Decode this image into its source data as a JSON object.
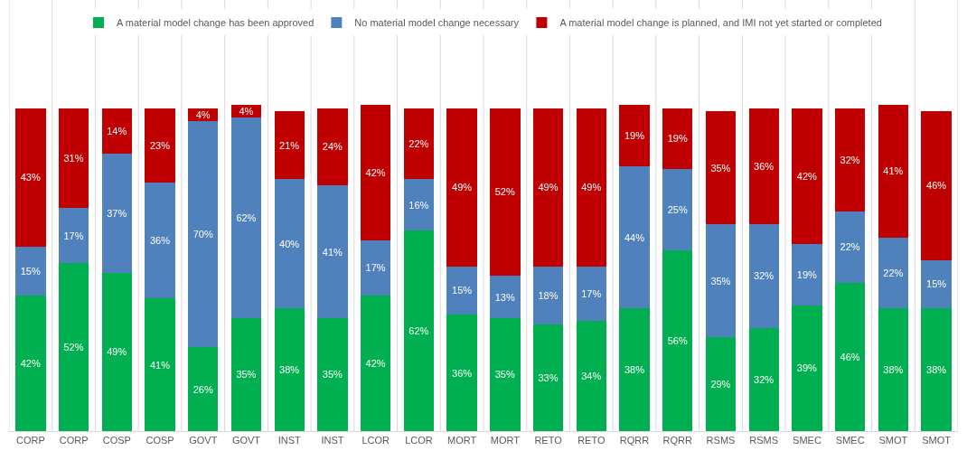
{
  "chart_data": {
    "type": "bar",
    "stacked": true,
    "grid": "x",
    "legend": "top",
    "categories": [
      "CORP",
      "CORP",
      "COSP",
      "COSP",
      "GOVT",
      "GOVT",
      "INST",
      "INST",
      "LCOR",
      "LCOR",
      "MORT",
      "MORT",
      "RETO",
      "RETO",
      "RQRR",
      "RQRR",
      "RSMS",
      "RSMS",
      "SMEC",
      "SMEC",
      "SMOT",
      "SMOT"
    ],
    "series": [
      {
        "name": "A material model change has been approved",
        "color": "#00b050",
        "values": [
          42,
          52,
          49,
          41,
          26,
          35,
          38,
          35,
          42,
          62,
          36,
          35,
          33,
          34,
          38,
          56,
          29,
          32,
          39,
          46,
          38,
          38
        ],
        "value_labels": [
          "42%",
          "52%",
          "49%",
          "41%",
          "26%",
          "35%",
          "38%",
          "35%",
          "42%",
          "62%",
          "36%",
          "35%",
          "33%",
          "34%",
          "38%",
          "56%",
          "29%",
          "32%",
          "39%",
          "46%",
          "38%",
          "38%"
        ]
      },
      {
        "name": "No material model change necessary",
        "color": "#4f81bd",
        "values": [
          15,
          17,
          37,
          36,
          70,
          62,
          40,
          41,
          17,
          16,
          15,
          13,
          18,
          17,
          44,
          25,
          35,
          32,
          19,
          22,
          22,
          15
        ],
        "value_labels": [
          "15%",
          "17%",
          "37%",
          "36%",
          "70%",
          "62%",
          "40%",
          "41%",
          "17%",
          "16%",
          "15%",
          "13%",
          "18%",
          "17%",
          "44%",
          "25%",
          "35%",
          "32%",
          "19%",
          "22%",
          "22%",
          "15%"
        ]
      },
      {
        "name": "A material model change is planned, and IMI not yet started or completed",
        "color": "#c00000",
        "values": [
          43,
          31,
          14,
          23,
          4,
          4,
          21,
          24,
          42,
          22,
          49,
          52,
          49,
          49,
          19,
          19,
          35,
          36,
          42,
          32,
          41,
          46
        ],
        "value_labels": [
          "43%",
          "31%",
          "14%",
          "23%",
          "4%",
          "4%",
          "21%",
          "24%",
          "42%",
          "22%",
          "49%",
          "52%",
          "49%",
          "49%",
          "19%",
          "19%",
          "35%",
          "36%",
          "42%",
          "32%",
          "41%",
          "46%"
        ]
      }
    ]
  }
}
